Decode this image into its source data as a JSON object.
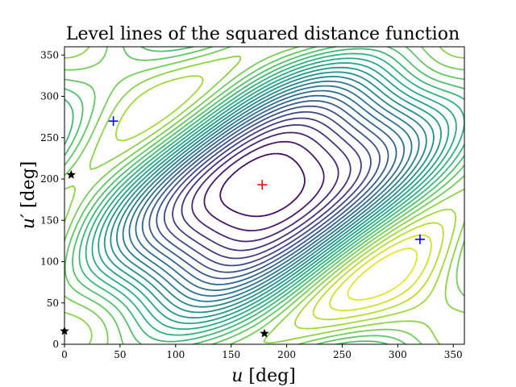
{
  "chart_data": {
    "type": "contour",
    "title": "Level lines of the squared distance function",
    "xlabel": "u [deg]",
    "ylabel": "u′ [deg]",
    "xlim": [
      0,
      360
    ],
    "ylim": [
      0,
      360
    ],
    "xticks": [
      "0",
      "50",
      "100",
      "150",
      "200",
      "250",
      "300",
      "350"
    ],
    "yticks": [
      "0",
      "50",
      "100",
      "150",
      "200",
      "250",
      "300",
      "350"
    ],
    "grid": false,
    "colormap": "viridis",
    "contour_levels": 28,
    "maximum": {
      "x": 178,
      "y": 193,
      "marker": "+",
      "color": "#ff0000"
    },
    "minima": [
      {
        "x": 44,
        "y": 270,
        "marker": "+",
        "color": "#0000ff"
      },
      {
        "x": 320,
        "y": 127,
        "marker": "+",
        "color": "#0000ff"
      }
    ],
    "saddles": [
      {
        "x": 6,
        "y": 205,
        "marker": "star",
        "color": "#000000"
      },
      {
        "x": 0,
        "y": 16,
        "marker": "star",
        "color": "#000000"
      },
      {
        "x": 180,
        "y": 13,
        "marker": "star",
        "color": "#000000"
      }
    ]
  }
}
